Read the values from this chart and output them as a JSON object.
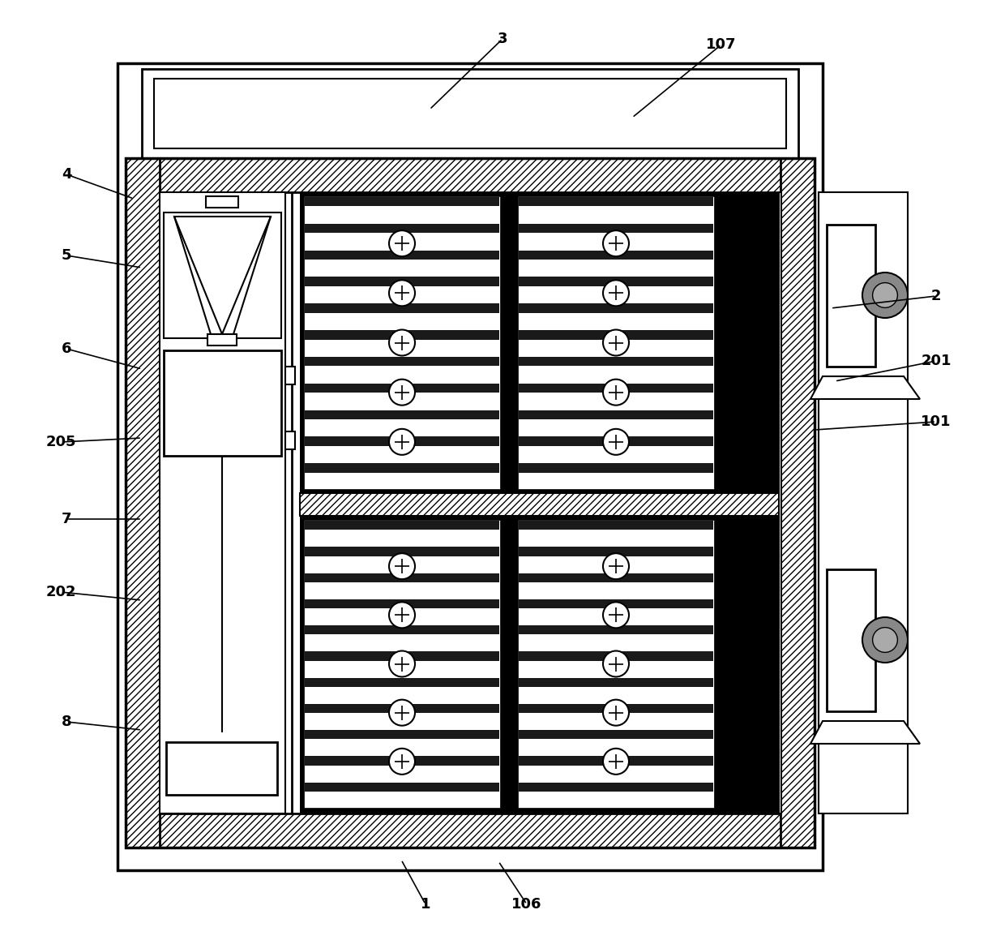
{
  "bg_color": "#ffffff",
  "line_color": "#000000",
  "fs": 13,
  "lw": 1.5,
  "lw2": 2.0,
  "lw3": 2.5
}
